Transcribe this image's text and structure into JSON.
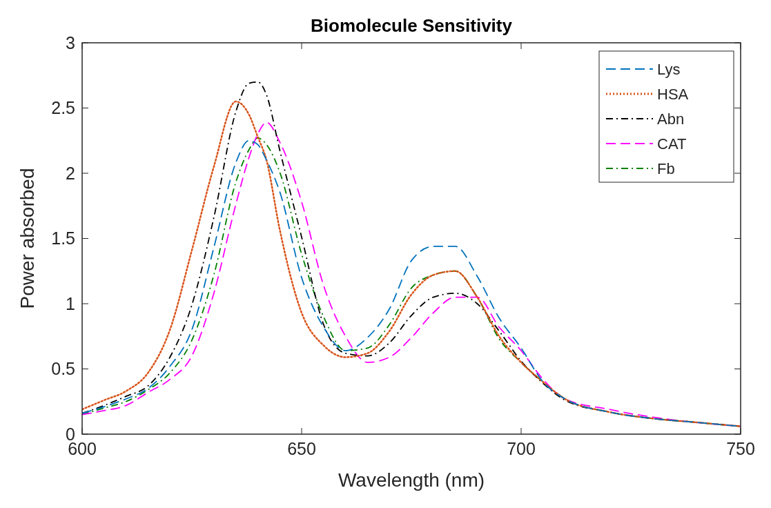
{
  "chart_data": {
    "type": "line",
    "title": "Biomolecule Sensitivity",
    "xlabel": "Wavelength (nm)",
    "ylabel": "Power absorbed",
    "x": [
      600,
      605,
      610,
      615,
      620,
      625,
      630,
      635,
      638,
      640,
      642,
      645,
      650,
      655,
      660,
      665,
      670,
      675,
      680,
      685,
      690,
      695,
      700,
      705,
      710,
      720,
      730,
      740,
      750
    ],
    "xlim": [
      600,
      750
    ],
    "xticks": [
      600,
      650,
      700,
      750
    ],
    "ylim": [
      0,
      3
    ],
    "yticks": [
      0,
      0.5,
      1,
      1.5,
      2,
      2.5,
      3
    ],
    "legend": "top right",
    "series": [
      {
        "name": "Lys",
        "color": "#0072bd",
        "line_style": "dashed",
        "values": [
          0.16,
          0.21,
          0.27,
          0.35,
          0.52,
          0.8,
          1.43,
          2.08,
          2.25,
          2.22,
          2.1,
          1.86,
          1.2,
          0.82,
          0.64,
          0.74,
          0.96,
          1.33,
          1.44,
          1.44,
          1.21,
          0.89,
          0.66,
          0.4,
          0.27,
          0.17,
          0.12,
          0.09,
          0.06
        ]
      },
      {
        "name": "HSA",
        "color": "#d95319",
        "line_style": "dotted",
        "values": [
          0.19,
          0.26,
          0.33,
          0.47,
          0.8,
          1.41,
          2.05,
          2.55,
          2.45,
          2.28,
          2.1,
          1.57,
          0.93,
          0.68,
          0.59,
          0.62,
          0.79,
          1.07,
          1.22,
          1.25,
          1.05,
          0.75,
          0.55,
          0.4,
          0.27,
          0.17,
          0.12,
          0.09,
          0.06
        ]
      },
      {
        "name": "Abn",
        "color": "#000000",
        "line_style": "dashdot",
        "values": [
          0.16,
          0.22,
          0.29,
          0.37,
          0.59,
          0.99,
          1.66,
          2.47,
          2.69,
          2.7,
          2.6,
          2.18,
          1.51,
          0.84,
          0.62,
          0.6,
          0.7,
          0.91,
          1.05,
          1.08,
          1.0,
          0.79,
          0.56,
          0.39,
          0.26,
          0.17,
          0.12,
          0.09,
          0.06
        ]
      },
      {
        "name": "CAT",
        "color": "#ff00ff",
        "line_style": "dashed",
        "values": [
          0.15,
          0.18,
          0.22,
          0.32,
          0.42,
          0.6,
          1.08,
          1.76,
          2.12,
          2.3,
          2.39,
          2.24,
          1.78,
          1.14,
          0.75,
          0.55,
          0.59,
          0.74,
          0.93,
          1.05,
          1.05,
          0.82,
          0.64,
          0.42,
          0.27,
          0.19,
          0.13,
          0.09,
          0.06
        ]
      },
      {
        "name": "Fb",
        "color": "#008000",
        "line_style": "dashdot",
        "values": [
          0.15,
          0.2,
          0.25,
          0.34,
          0.47,
          0.72,
          1.22,
          1.93,
          2.18,
          2.27,
          2.22,
          2.01,
          1.38,
          0.9,
          0.64,
          0.66,
          0.84,
          1.12,
          1.22,
          1.25,
          1.05,
          0.73,
          0.55,
          0.4,
          0.27,
          0.17,
          0.12,
          0.09,
          0.06
        ]
      }
    ]
  }
}
